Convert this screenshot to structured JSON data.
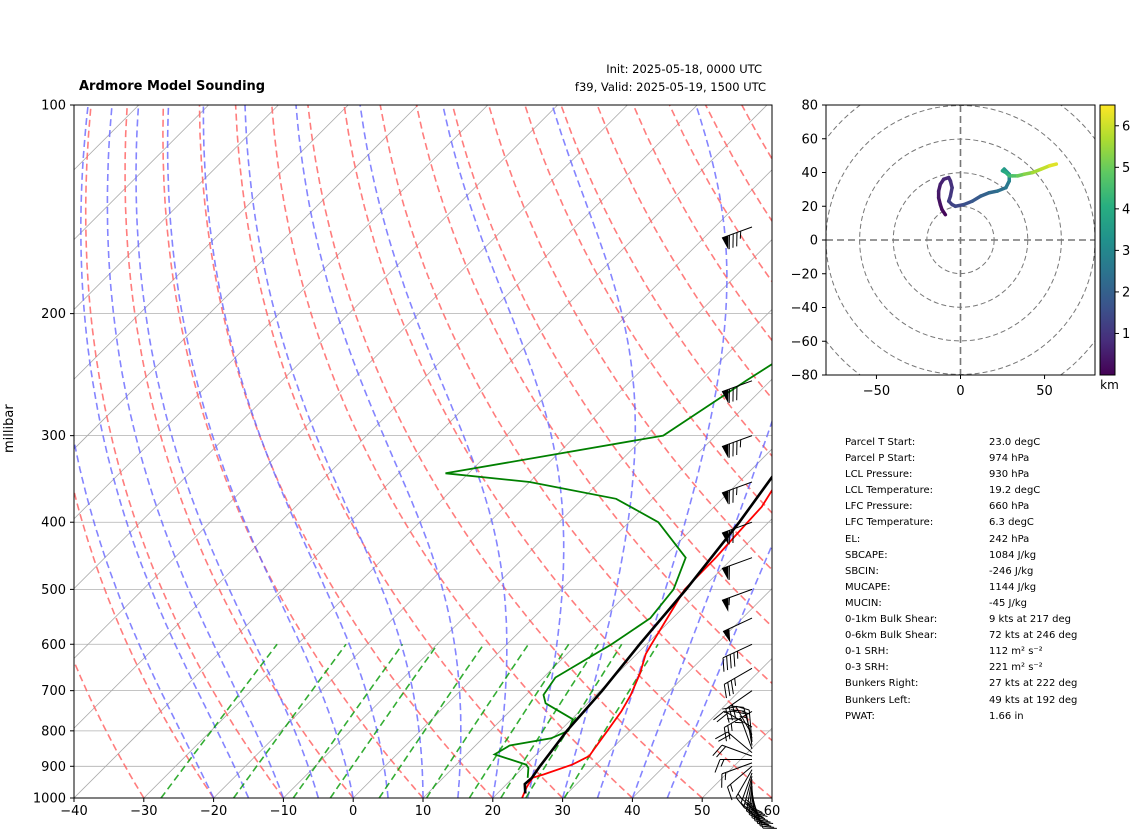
{
  "header": {
    "title": "Ardmore Model Sounding",
    "init": "Init: 2025-05-18, 0000 UTC",
    "valid": "f39, Valid: 2025-05-19, 1500 UTC"
  },
  "chart_data": [
    {
      "type": "line",
      "chart": "skew-T log-p sounding",
      "ylabel": "millibar",
      "xlim": [
        -40,
        60
      ],
      "ylim": [
        1000,
        100
      ],
      "y_scale": "log",
      "grid": true,
      "x_ticks": [
        "−40",
        "−30",
        "−20",
        "−10",
        "0",
        "10",
        "20",
        "30",
        "40",
        "50",
        "60"
      ],
      "y_ticks": [
        "100",
        "200",
        "300",
        "400",
        "500",
        "600",
        "700",
        "800",
        "900",
        "1000"
      ],
      "series": [
        {
          "color": "#ff0000",
          "points": [
            [
              24.2,
              1000
            ],
            [
              23.3,
              965
            ],
            [
              22.8,
              935
            ],
            [
              23.9,
              925
            ],
            [
              26.6,
              895
            ],
            [
              27.8,
              870
            ],
            [
              27.5,
              850
            ],
            [
              26.8,
              800
            ],
            [
              26.0,
              750
            ],
            [
              25.0,
              710
            ],
            [
              23.2,
              660
            ],
            [
              21.3,
              620
            ],
            [
              20.7,
              600
            ],
            [
              17.6,
              500
            ],
            [
              17.5,
              450
            ],
            [
              17.2,
              420
            ],
            [
              16.8,
              380
            ],
            [
              15.0,
              340
            ],
            [
              12.5,
              300
            ],
            [
              10.5,
              260
            ],
            [
              9.4,
              230
            ],
            [
              8.2,
              200
            ],
            [
              7.8,
              170
            ],
            [
              7.2,
              150
            ],
            [
              7.2,
              125
            ],
            [
              7.8,
              110
            ],
            [
              8.9,
              100
            ]
          ]
        },
        {
          "color": "#008000",
          "points": [
            [
              22.1,
              935
            ],
            [
              20.8,
              905
            ],
            [
              20.0,
              895
            ],
            [
              14.0,
              865
            ],
            [
              14.9,
              840
            ],
            [
              19.8,
              820
            ],
            [
              21.2,
              800
            ],
            [
              20.2,
              770
            ],
            [
              14.0,
              730
            ],
            [
              12.5,
              710
            ],
            [
              11.7,
              670
            ],
            [
              15.0,
              600
            ],
            [
              16.8,
              550
            ],
            [
              16.0,
              500
            ],
            [
              13.2,
              450
            ],
            [
              4.2,
              400
            ],
            [
              -5.2,
              370
            ],
            [
              -20.0,
              350
            ],
            [
              -33.3,
              340
            ],
            [
              -7.5,
              300
            ],
            [
              -3.5,
              250
            ],
            [
              0.2,
              215
            ],
            [
              6.6,
              180
            ],
            [
              11.4,
              150
            ],
            [
              7.3,
              125
            ],
            [
              3.2,
              115
            ],
            [
              3.4,
              100
            ]
          ]
        },
        {
          "color": "#000000",
          "points": [
            [
              24.0,
              985
            ],
            [
              22.6,
              955
            ],
            [
              22.7,
              935
            ],
            [
              22.2,
              900
            ],
            [
              21.0,
              800
            ],
            [
              20.3,
              700
            ],
            [
              19.0,
              600
            ],
            [
              17.8,
              500
            ],
            [
              15.8,
              400
            ],
            [
              12.4,
              300
            ],
            [
              7.5,
              200
            ],
            [
              0.4,
              100
            ]
          ]
        }
      ],
      "wind_barbs": [
        {
          "p": 1000,
          "speed_kt": 15,
          "dir_deg": 160
        },
        {
          "p": 990,
          "speed_kt": 20,
          "dir_deg": 165
        },
        {
          "p": 980,
          "speed_kt": 25,
          "dir_deg": 170
        },
        {
          "p": 970,
          "speed_kt": 30,
          "dir_deg": 175
        },
        {
          "p": 960,
          "speed_kt": 30,
          "dir_deg": 180
        },
        {
          "p": 950,
          "speed_kt": 30,
          "dir_deg": 185
        },
        {
          "p": 940,
          "speed_kt": 25,
          "dir_deg": 190
        },
        {
          "p": 930,
          "speed_kt": 25,
          "dir_deg": 195
        },
        {
          "p": 920,
          "speed_kt": 20,
          "dir_deg": 200
        },
        {
          "p": 910,
          "speed_kt": 15,
          "dir_deg": 210
        },
        {
          "p": 900,
          "speed_kt": 15,
          "dir_deg": 230
        },
        {
          "p": 890,
          "speed_kt": 15,
          "dir_deg": 250
        },
        {
          "p": 880,
          "speed_kt": 15,
          "dir_deg": 270
        },
        {
          "p": 870,
          "speed_kt": 20,
          "dir_deg": 290
        },
        {
          "p": 860,
          "speed_kt": 20,
          "dir_deg": 310
        },
        {
          "p": 850,
          "speed_kt": 15,
          "dir_deg": 340
        },
        {
          "p": 840,
          "speed_kt": 15,
          "dir_deg": 350
        },
        {
          "p": 830,
          "speed_kt": 15,
          "dir_deg": 355
        },
        {
          "p": 820,
          "speed_kt": 20,
          "dir_deg": 345
        },
        {
          "p": 810,
          "speed_kt": 20,
          "dir_deg": 330
        },
        {
          "p": 790,
          "speed_kt": 20,
          "dir_deg": 300
        },
        {
          "p": 750,
          "speed_kt": 25,
          "dir_deg": 240
        },
        {
          "p": 700,
          "speed_kt": 30,
          "dir_deg": 235
        },
        {
          "p": 650,
          "speed_kt": 35,
          "dir_deg": 240
        },
        {
          "p": 600,
          "speed_kt": 45,
          "dir_deg": 245
        },
        {
          "p": 550,
          "speed_kt": 50,
          "dir_deg": 245
        },
        {
          "p": 500,
          "speed_kt": 55,
          "dir_deg": 250
        },
        {
          "p": 450,
          "speed_kt": 60,
          "dir_deg": 250
        },
        {
          "p": 400,
          "speed_kt": 70,
          "dir_deg": 250
        },
        {
          "p": 350,
          "speed_kt": 75,
          "dir_deg": 250
        },
        {
          "p": 300,
          "speed_kt": 85,
          "dir_deg": 250
        },
        {
          "p": 250,
          "speed_kt": 80,
          "dir_deg": 250
        },
        {
          "p": 150,
          "speed_kt": 85,
          "dir_deg": 250
        }
      ],
      "colors": {
        "temperature": "#ff0000",
        "dewpoint": "#008000",
        "parcel": "#000000",
        "dry_adiabats": "#ff6666",
        "moist_adiabats": "#6666ff",
        "mixing_ratio": "#009900",
        "isotherms": "#aaaaaa"
      }
    },
    {
      "type": "line",
      "chart": "hodograph",
      "xlabel": "",
      "ylabel": "",
      "xlim": [
        -80,
        80
      ],
      "ylim": [
        -80,
        80
      ],
      "x_ticks": [
        "−50",
        "0",
        "50"
      ],
      "y_ticks": [
        "80",
        "60",
        "40",
        "20",
        "0",
        "−20",
        "−40",
        "−60",
        "−80"
      ],
      "ring_spacing": 20,
      "colorbar": {
        "label": "km",
        "ticks": [
          "1",
          "2",
          "3",
          "4",
          "5",
          "6"
        ],
        "range": [
          0,
          6.5
        ]
      },
      "points": [
        [
          -9,
          15
        ],
        [
          -11,
          18
        ],
        [
          -12,
          21
        ],
        [
          -13,
          25
        ],
        [
          -13,
          29
        ],
        [
          -12,
          33
        ],
        [
          -10,
          36
        ],
        [
          -7,
          37
        ],
        [
          -6,
          35
        ],
        [
          -5,
          31
        ],
        [
          -6,
          26
        ],
        [
          -7,
          23
        ],
        [
          -5,
          21
        ],
        [
          -3,
          20
        ],
        [
          2,
          21
        ],
        [
          7,
          23
        ],
        [
          12,
          26
        ],
        [
          17,
          28
        ],
        [
          22,
          29
        ],
        [
          27,
          31
        ],
        [
          29,
          35
        ],
        [
          29,
          39
        ],
        [
          26,
          42
        ],
        [
          25,
          41
        ],
        [
          27,
          40
        ],
        [
          29,
          38
        ],
        [
          31,
          38
        ],
        [
          34,
          38
        ],
        [
          38,
          39
        ],
        [
          43,
          40
        ],
        [
          48,
          42
        ],
        [
          53,
          44
        ],
        [
          57,
          45
        ]
      ],
      "heights_km": [
        0.1,
        0.2,
        0.3,
        0.4,
        0.5,
        0.6,
        0.7,
        0.8,
        0.9,
        1.0,
        1.1,
        1.2,
        1.3,
        1.4,
        1.6,
        1.8,
        2.0,
        2.2,
        2.4,
        2.6,
        2.9,
        3.2,
        3.5,
        3.8,
        4.1,
        4.4,
        4.7,
        5.0,
        5.3,
        5.6,
        5.9,
        6.2,
        6.4
      ]
    }
  ],
  "parameters": [
    {
      "label": "Parcel T Start:",
      "value": "23.0 degC"
    },
    {
      "label": "Parcel P Start:",
      "value": "974 hPa"
    },
    {
      "label": "LCL Pressure:",
      "value": "930 hPa"
    },
    {
      "label": "LCL Temperature:",
      "value": "19.2 degC"
    },
    {
      "label": "LFC Pressure:",
      "value": "660 hPa"
    },
    {
      "label": "LFC Temperature:",
      "value": "6.3 degC"
    },
    {
      "label": "EL:",
      "value": "242 hPa"
    },
    {
      "label": "SBCAPE:",
      "value": "1084 J/kg"
    },
    {
      "label": "SBCIN:",
      "value": "-246 J/kg"
    },
    {
      "label": "MUCAPE:",
      "value": "1144 J/kg"
    },
    {
      "label": "MUCIN:",
      "value": "-45 J/kg"
    },
    {
      "label": "0-1km Bulk Shear:",
      "value": "9 kts at 217 deg"
    },
    {
      "label": "0-6km Bulk Shear:",
      "value": "72 kts at 246 deg"
    },
    {
      "label": "0-1 SRH:",
      "value": "112 m² s⁻²"
    },
    {
      "label": "0-3 SRH:",
      "value": "221 m² s⁻²"
    },
    {
      "label": "Bunkers Right:",
      "value": "27 kts at 222 deg"
    },
    {
      "label": "Bunkers Left:",
      "value": "49 kts at 192 deg"
    },
    {
      "label": "PWAT:",
      "value": "1.66 in"
    }
  ]
}
